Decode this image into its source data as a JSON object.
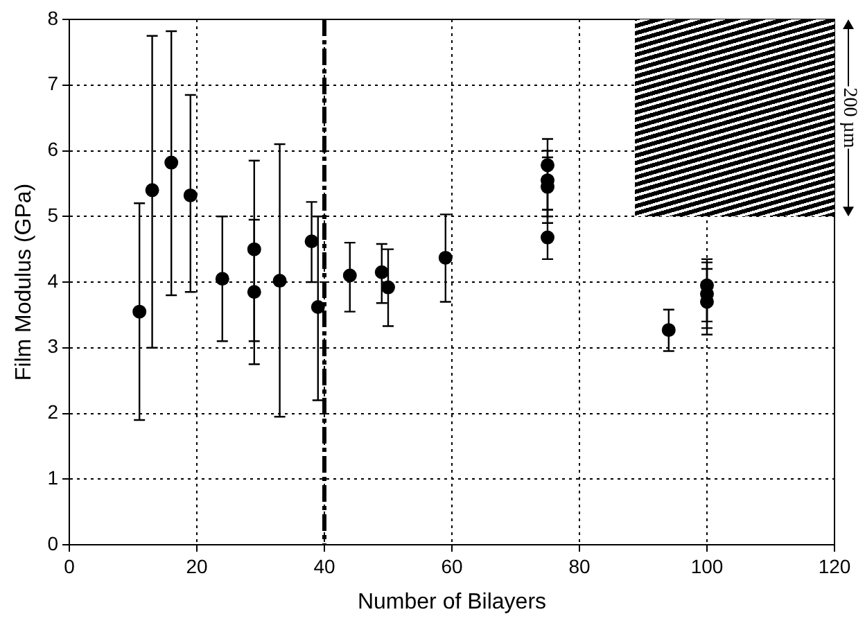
{
  "chart_data": {
    "type": "scatter",
    "xlabel": "Number of Bilayers",
    "ylabel": "Film Modulus (GPa)",
    "x": [
      11,
      13,
      16,
      19,
      24,
      29,
      29,
      33,
      38,
      39,
      44,
      49,
      50,
      59,
      75,
      75,
      75,
      75,
      94,
      100,
      100,
      100
    ],
    "values": [
      3.55,
      5.4,
      5.82,
      5.32,
      4.05,
      4.5,
      3.85,
      4.02,
      4.62,
      3.62,
      4.1,
      4.15,
      3.92,
      4.37,
      5.78,
      5.55,
      5.45,
      4.68,
      3.27,
      3.95,
      3.82,
      3.7
    ],
    "errors": [
      [
        1.9,
        5.2
      ],
      [
        3.0,
        7.75
      ],
      [
        3.8,
        7.82
      ],
      [
        3.85,
        6.85
      ],
      [
        3.1,
        5.0
      ],
      [
        3.1,
        5.85
      ],
      [
        2.75,
        4.95
      ],
      [
        1.95,
        6.1
      ],
      [
        4.0,
        5.22
      ],
      [
        2.2,
        5.0
      ],
      [
        3.55,
        4.6
      ],
      [
        3.68,
        4.58
      ],
      [
        3.33,
        4.5
      ],
      [
        3.7,
        5.03
      ],
      [
        5.1,
        6.18
      ],
      [
        5.0,
        6.0
      ],
      [
        4.9,
        5.9
      ],
      [
        4.35,
        5.1
      ],
      [
        2.95,
        3.58
      ],
      [
        3.4,
        4.35
      ],
      [
        3.3,
        4.3
      ],
      [
        3.2,
        4.2
      ]
    ],
    "color": "#000000",
    "marker": "circle",
    "xlim": [
      0,
      120
    ],
    "xticks": [
      0,
      20,
      40,
      60,
      80,
      100,
      120
    ],
    "ylim": [
      0,
      8
    ],
    "yticks": [
      0,
      1,
      2,
      3,
      4,
      5,
      6,
      7,
      8
    ],
    "grid": true,
    "legend": false,
    "ref_lines": [
      {
        "axis": "x",
        "value": 40,
        "color": "#000000",
        "line_style": "dashdot"
      }
    ],
    "annotations": [
      "200 µm"
    ]
  }
}
